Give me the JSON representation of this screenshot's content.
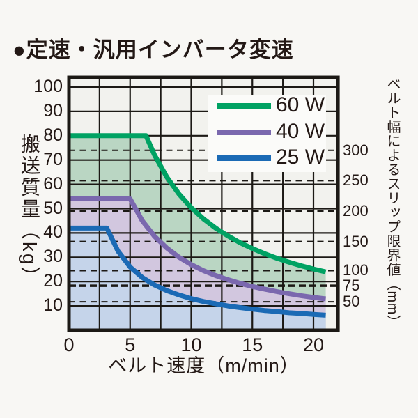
{
  "title": "●定速・汎用インバータ変速",
  "chart_data": {
    "type": "area",
    "xlabel": "ベルト速度（m/min）",
    "ylabel_left": "搬送質量（kg）",
    "ylabel_right": "ベルト幅によるスリップ限界値（mm）",
    "xlim": [
      0,
      22
    ],
    "ylim": [
      0,
      104
    ],
    "x_ticks": [
      0,
      5,
      10,
      15,
      20
    ],
    "x_grid_step": 2.5,
    "y_grid_step": 10,
    "y_ticks_left": [
      10,
      20,
      30,
      40,
      50,
      60,
      70,
      80,
      90,
      100
    ],
    "grid": true,
    "legend_position": "upper right",
    "right_axis": {
      "unit": "mm",
      "ticks": [
        {
          "label": "300",
          "kg": 74
        },
        {
          "label": "250",
          "kg": 61.5
        },
        {
          "label": "200",
          "kg": 49
        },
        {
          "label": "150",
          "kg": 36.5
        },
        {
          "label": "100",
          "kg": 24.5
        },
        {
          "label": "75",
          "kg": 18.3,
          "bold": true
        },
        {
          "label": "50",
          "kg": 11.7
        }
      ]
    },
    "series": [
      {
        "name": "60 W",
        "color": "#00a263",
        "fill": "#bad6c3",
        "flat_kg": 80,
        "flat_until": 6.3,
        "end_x": 21,
        "points": [
          [
            0,
            80
          ],
          [
            6.3,
            80
          ],
          [
            7,
            72
          ],
          [
            8,
            63
          ],
          [
            9,
            56
          ],
          [
            10,
            50.4
          ],
          [
            11,
            45.8
          ],
          [
            12,
            42
          ],
          [
            13,
            38.8
          ],
          [
            14,
            36
          ],
          [
            15,
            33.6
          ],
          [
            16,
            31.5
          ],
          [
            17,
            29.6
          ],
          [
            18,
            28
          ],
          [
            19,
            26.5
          ],
          [
            20,
            25.2
          ],
          [
            21,
            24
          ]
        ]
      },
      {
        "name": "40 W",
        "color": "#7a68ae",
        "fill": "#d2c7df",
        "flat_kg": 54,
        "flat_until": 5,
        "end_x": 21,
        "points": [
          [
            0,
            54
          ],
          [
            5,
            54
          ],
          [
            6,
            45
          ],
          [
            7,
            38.6
          ],
          [
            8,
            33.8
          ],
          [
            9,
            30
          ],
          [
            10,
            27
          ],
          [
            11,
            24.5
          ],
          [
            12,
            22.5
          ],
          [
            13,
            20.8
          ],
          [
            14,
            19.3
          ],
          [
            15,
            18
          ],
          [
            16,
            16.9
          ],
          [
            17,
            15.9
          ],
          [
            18,
            15
          ],
          [
            19,
            14.2
          ],
          [
            20,
            13.5
          ],
          [
            21,
            12.9
          ]
        ]
      },
      {
        "name": "25 W",
        "color": "#1b6ab5",
        "fill": "#c5d4ea",
        "flat_kg": 42,
        "flat_until": 3.1,
        "end_x": 21,
        "points": [
          [
            0,
            42
          ],
          [
            3.1,
            42
          ],
          [
            4,
            32.6
          ],
          [
            5,
            26
          ],
          [
            6,
            21.7
          ],
          [
            7,
            18.6
          ],
          [
            8,
            16.3
          ],
          [
            9,
            14.5
          ],
          [
            10,
            13
          ],
          [
            11,
            11.8
          ],
          [
            12,
            10.9
          ],
          [
            13,
            10
          ],
          [
            14,
            9.3
          ],
          [
            15,
            8.7
          ],
          [
            16,
            8.1
          ],
          [
            17,
            7.7
          ],
          [
            18,
            7.2
          ],
          [
            19,
            6.9
          ],
          [
            20,
            6.5
          ],
          [
            21,
            6.2
          ]
        ]
      }
    ]
  },
  "colors": {
    "text": "#231815",
    "grid": "#1c1915",
    "plot_bg": "#f2f2ee",
    "page_bg": "#f8f7f4",
    "legend_bg": "#fbfbf9"
  }
}
